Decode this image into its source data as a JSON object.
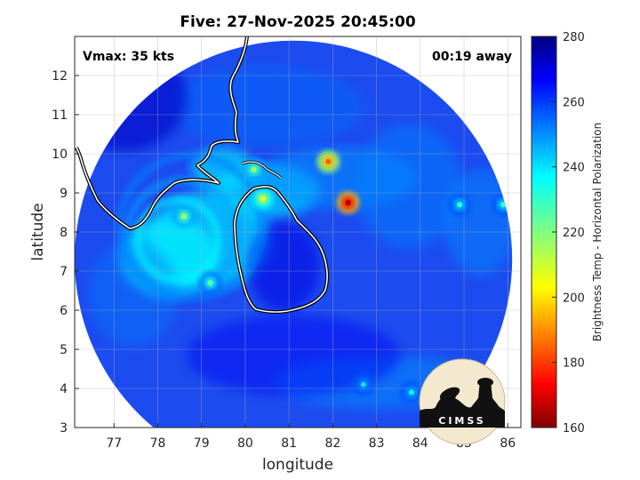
{
  "chart_data": {
    "type": "heatmap",
    "title": "Five: 27-Nov-2025 20:45:00",
    "xlabel": "longitude",
    "ylabel": "latitude",
    "xlim": [
      76.1,
      86.3
    ],
    "ylim": [
      3,
      13
    ],
    "x_ticks": [
      77,
      78,
      79,
      80,
      81,
      82,
      83,
      84,
      85,
      86
    ],
    "y_ticks": [
      3,
      4,
      5,
      6,
      7,
      8,
      9,
      10,
      11,
      12
    ],
    "annotations": {
      "vmax": "Vmax: 35 kts",
      "time_offset": "00:19 away"
    },
    "colorbar": {
      "label": "Brightness Temp - Horizontal Polarization",
      "range": [
        160,
        280
      ],
      "ticks": [
        160,
        180,
        200,
        220,
        240,
        260,
        280
      ],
      "colormap": "jet"
    },
    "grid": true,
    "swath": {
      "center": [
        81.1,
        7.3
      ],
      "radius_deg": 5.0
    },
    "cold_features": [
      {
        "lon": 82.35,
        "lat": 8.75,
        "value": 165
      },
      {
        "lon": 81.9,
        "lat": 9.8,
        "value": 185
      },
      {
        "lon": 80.4,
        "lat": 8.85,
        "value": 205
      },
      {
        "lon": 80.2,
        "lat": 9.6,
        "value": 215
      },
      {
        "lon": 78.6,
        "lat": 8.4,
        "value": 215
      },
      {
        "lon": 79.2,
        "lat": 6.7,
        "value": 222
      },
      {
        "lon": 84.9,
        "lat": 8.7,
        "value": 230
      },
      {
        "lon": 85.9,
        "lat": 8.7,
        "value": 228
      },
      {
        "lon": 82.7,
        "lat": 4.1,
        "value": 238
      },
      {
        "lon": 83.8,
        "lat": 3.9,
        "value": 235
      }
    ],
    "logo": "CIMSS"
  }
}
